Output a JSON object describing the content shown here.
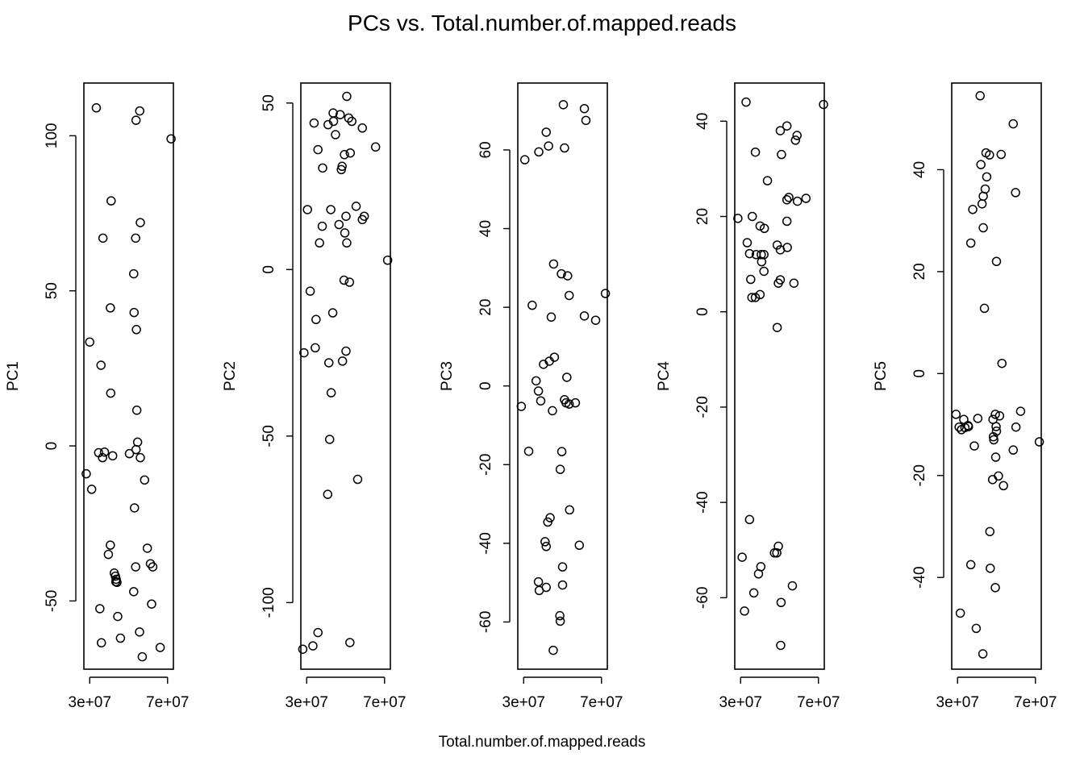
{
  "title": "PCs vs. Total.number.of.mapped.reads",
  "xlabel": "Total.number.of.mapped.reads",
  "chart_data": [
    {
      "type": "scatter",
      "ylabel": "PC1",
      "xlim": [
        27000000,
        73000000
      ],
      "ylim": [
        -68000,
        112000
      ],
      "xticks": [
        {
          "value": 30000000,
          "label": "3e+07"
        },
        {
          "value": 70000000,
          "label": "7e+07"
        }
      ],
      "yticks": [
        {
          "value": -50,
          "label": "-50"
        },
        {
          "value": 0,
          "label": "0"
        },
        {
          "value": 50,
          "label": "50"
        },
        {
          "value": 100,
          "label": "100"
        }
      ],
      "x": [],
      "y": []
    }
  ]
}
